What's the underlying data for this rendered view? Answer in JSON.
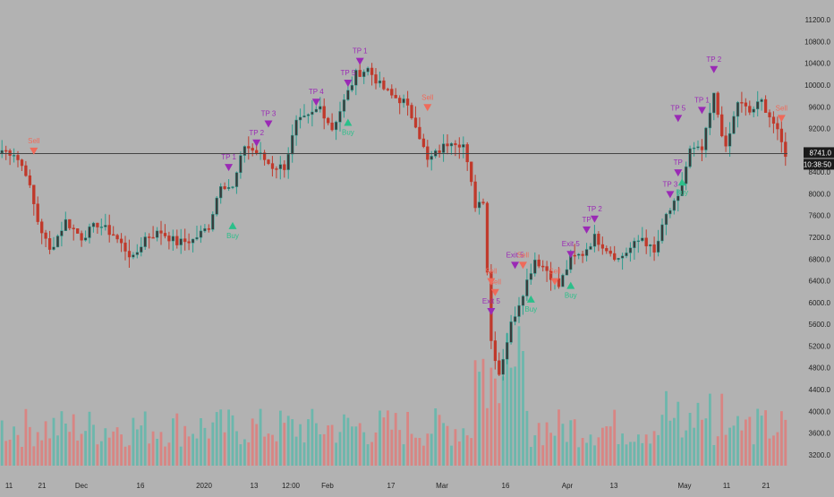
{
  "chart_data": {
    "type": "candlestick",
    "instrument_note": "",
    "y_axis": {
      "side": "right",
      "ticks": [
        3200,
        3600,
        4000,
        4400,
        4800,
        5200,
        5600,
        6000,
        6400,
        6800,
        7200,
        7600,
        8000,
        8400,
        8800,
        9200,
        9600,
        10000,
        10400,
        10800,
        11200
      ],
      "tick_labels": [
        "3200.0",
        "3600.0",
        "4000.0",
        "4400.0",
        "4800.0",
        "5200.0",
        "5600.0",
        "6000.0",
        "6400.0",
        "6800.0",
        "7200.0",
        "7600.0",
        "8000.0",
        "8400.0",
        "8800.0",
        "9200.0",
        "9600.0",
        "10000.0",
        "10400.0",
        "10800.0",
        "11200.0"
      ],
      "range": [
        3000,
        11400
      ]
    },
    "x_axis": {
      "tick_labels": [
        "11",
        "21",
        "Dec",
        "16",
        "2020",
        "13",
        "12:00",
        "Feb",
        "17",
        "Mar",
        "16",
        "Apr",
        "13",
        "May",
        "11",
        "21"
      ]
    },
    "last_price": {
      "value": 8741.0,
      "label": "8741.0",
      "countdown": "10:38:50",
      "color": "#1a1a1a"
    },
    "price_path": [
      {
        "t": 0,
        "p": 8800
      },
      {
        "t": 3,
        "p": 8750
      },
      {
        "t": 6,
        "p": 8400
      },
      {
        "t": 9,
        "p": 7500
      },
      {
        "t": 12,
        "p": 6950
      },
      {
        "t": 16,
        "p": 7500
      },
      {
        "t": 20,
        "p": 7200
      },
      {
        "t": 24,
        "p": 7450
      },
      {
        "t": 28,
        "p": 7250
      },
      {
        "t": 33,
        "p": 6800
      },
      {
        "t": 36,
        "p": 7200
      },
      {
        "t": 40,
        "p": 7300
      },
      {
        "t": 44,
        "p": 7100
      },
      {
        "t": 48,
        "p": 7150
      },
      {
        "t": 52,
        "p": 7400
      },
      {
        "t": 55,
        "p": 8200
      },
      {
        "t": 58,
        "p": 8100
      },
      {
        "t": 61,
        "p": 8900
      },
      {
        "t": 65,
        "p": 8700
      },
      {
        "t": 68,
        "p": 8500
      },
      {
        "t": 71,
        "p": 8500
      },
      {
        "t": 74,
        "p": 9300
      },
      {
        "t": 77,
        "p": 9400
      },
      {
        "t": 80,
        "p": 9600
      },
      {
        "t": 83,
        "p": 9200
      },
      {
        "t": 86,
        "p": 9700
      },
      {
        "t": 89,
        "p": 10200
      },
      {
        "t": 92,
        "p": 10300
      },
      {
        "t": 95,
        "p": 10000
      },
      {
        "t": 98,
        "p": 9800
      },
      {
        "t": 101,
        "p": 9700
      },
      {
        "t": 104,
        "p": 9300
      },
      {
        "t": 107,
        "p": 8600
      },
      {
        "t": 110,
        "p": 8800
      },
      {
        "t": 113,
        "p": 9000
      },
      {
        "t": 116,
        "p": 8900
      },
      {
        "t": 119,
        "p": 7800
      },
      {
        "t": 121,
        "p": 7900
      },
      {
        "t": 123,
        "p": 5300
      },
      {
        "t": 125,
        "p": 4700
      },
      {
        "t": 128,
        "p": 5600
      },
      {
        "t": 131,
        "p": 6200
      },
      {
        "t": 134,
        "p": 6800
      },
      {
        "t": 137,
        "p": 6600
      },
      {
        "t": 140,
        "p": 6300
      },
      {
        "t": 143,
        "p": 6800
      },
      {
        "t": 146,
        "p": 6900
      },
      {
        "t": 149,
        "p": 7200
      },
      {
        "t": 152,
        "p": 7000
      },
      {
        "t": 155,
        "p": 6800
      },
      {
        "t": 158,
        "p": 7000
      },
      {
        "t": 161,
        "p": 7200
      },
      {
        "t": 164,
        "p": 6900
      },
      {
        "t": 167,
        "p": 7600
      },
      {
        "t": 170,
        "p": 7900
      },
      {
        "t": 173,
        "p": 8800
      },
      {
        "t": 176,
        "p": 8800
      },
      {
        "t": 179,
        "p": 9800
      },
      {
        "t": 182,
        "p": 8800
      },
      {
        "t": 185,
        "p": 9700
      },
      {
        "t": 188,
        "p": 9500
      },
      {
        "t": 191,
        "p": 9700
      },
      {
        "t": 194,
        "p": 9300
      },
      {
        "t": 197,
        "p": 8741
      }
    ],
    "signals": [
      {
        "t": 8,
        "p": 8800,
        "kind": "sell",
        "label": "Sell"
      },
      {
        "t": 58,
        "p": 7400,
        "kind": "buy",
        "label": "Buy"
      },
      {
        "t": 57,
        "p": 8500,
        "kind": "tp",
        "label": "TP 1"
      },
      {
        "t": 64,
        "p": 8950,
        "kind": "tp",
        "label": "TP 2"
      },
      {
        "t": 67,
        "p": 9300,
        "kind": "tp",
        "label": "TP 3"
      },
      {
        "t": 79,
        "p": 9700,
        "kind": "tp",
        "label": "TP 4"
      },
      {
        "t": 87,
        "p": 10050,
        "kind": "tp",
        "label": "TP 5"
      },
      {
        "t": 90,
        "p": 10450,
        "kind": "tp",
        "label": "TP 1"
      },
      {
        "t": 87,
        "p": 9300,
        "kind": "buy",
        "label": "Buy"
      },
      {
        "t": 107,
        "p": 9600,
        "kind": "sell",
        "label": "Sell"
      },
      {
        "t": 123,
        "p": 6400,
        "kind": "sell",
        "label": "Sell"
      },
      {
        "t": 124,
        "p": 6200,
        "kind": "sell",
        "label": "Sell"
      },
      {
        "t": 123,
        "p": 5850,
        "kind": "tp",
        "label": "Exit 5"
      },
      {
        "t": 129,
        "p": 6700,
        "kind": "tp",
        "label": "Exit 5"
      },
      {
        "t": 131,
        "p": 6700,
        "kind": "sell",
        "label": "Sell"
      },
      {
        "t": 133,
        "p": 6050,
        "kind": "buy",
        "label": "Buy"
      },
      {
        "t": 139,
        "p": 6400,
        "kind": "sell",
        "label": "Sell"
      },
      {
        "t": 143,
        "p": 6300,
        "kind": "buy",
        "label": "Buy"
      },
      {
        "t": 143,
        "p": 6900,
        "kind": "tp",
        "label": "Exit 5"
      },
      {
        "t": 147,
        "p": 7350,
        "kind": "tp",
        "label": "TP"
      },
      {
        "t": 149,
        "p": 7550,
        "kind": "tp",
        "label": "TP 2"
      },
      {
        "t": 168,
        "p": 8000,
        "kind": "tp",
        "label": "TP 3"
      },
      {
        "t": 170,
        "p": 8400,
        "kind": "tp",
        "label": "TP"
      },
      {
        "t": 171,
        "p": 8200,
        "kind": "buy",
        "label": "Buy"
      },
      {
        "t": 170,
        "p": 9400,
        "kind": "tp",
        "label": "TP 5"
      },
      {
        "t": 176,
        "p": 9550,
        "kind": "tp",
        "label": "TP 1"
      },
      {
        "t": 179,
        "p": 10300,
        "kind": "tp",
        "label": "TP 2"
      },
      {
        "t": 196,
        "p": 9400,
        "kind": "sell",
        "label": "Sell"
      }
    ]
  },
  "colors": {
    "background": "#b2b2b2",
    "up": "#2a9d8f",
    "up_body": "#3a3a3a",
    "down": "#c0392b",
    "volume_up": "#5fb7aa",
    "volume_down": "#de7d7a",
    "sell": "#ef6a5a",
    "buy": "#2bbf8a",
    "tp": "#9a2ab5",
    "axis_text": "#222222"
  }
}
